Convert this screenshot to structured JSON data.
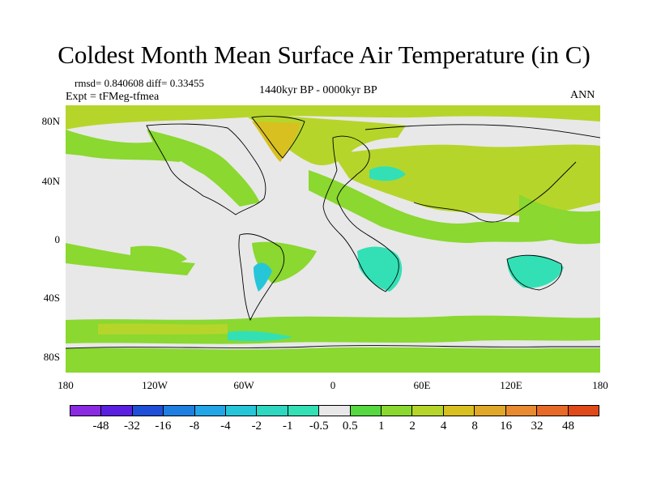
{
  "title": "Coldest Month Mean Surface Air Temperature (in C)",
  "stats": "rmsd= 0.840608 diff= 0.33455",
  "experiment": "Expt = tFMeg-tfmea",
  "period": "1440kyr BP - 0000kyr BP",
  "season": "ANN",
  "y_axis": [
    "80N",
    "40N",
    "0",
    "40S",
    "80S"
  ],
  "x_axis": [
    "180",
    "120W",
    "60W",
    "0",
    "60E",
    "120E",
    "180"
  ],
  "colorbar": {
    "colors": [
      "#8a2be2",
      "#5a1fe0",
      "#1f4fd6",
      "#1e7fe0",
      "#23a6e8",
      "#26c6d8",
      "#2fd7c0",
      "#33e0b5",
      "#e8e8e8",
      "#55d840",
      "#8ad830",
      "#b6d52a",
      "#d8c020",
      "#e0a828",
      "#e88a30",
      "#e86a28",
      "#e04a18"
    ],
    "labels": [
      "-48",
      "-32",
      "-16",
      "-8",
      "-4",
      "-2",
      "-1",
      "-0.5",
      "0.5",
      "1",
      "2",
      "4",
      "8",
      "16",
      "32",
      "48"
    ]
  },
  "map_colors": {
    "ocean_background": "#e8e8e8",
    "warm_light": "#8ad830",
    "warm_medium": "#b6d52a",
    "warm_strong": "#d8c020",
    "cool_light": "#33e0b5",
    "cool_medium": "#26c6d8"
  }
}
